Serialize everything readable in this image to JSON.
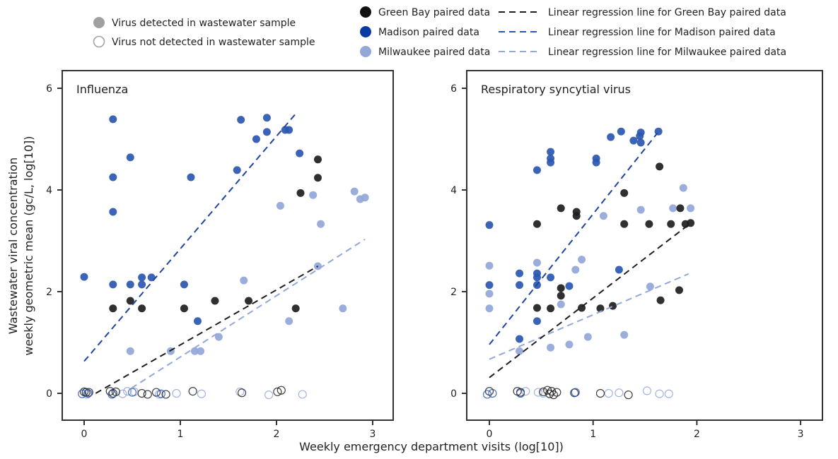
{
  "legend": {
    "detected": "Virus detected in wastewater sample",
    "not_detected": "Virus not detected in wastewater sample",
    "series": [
      "Green Bay paired data",
      "Madison paired data",
      "Milwaukee paired data"
    ],
    "lines": [
      "Linear regression line for Green Bay paired data",
      "Linear regression line for Madison paired data",
      "Linear regression line for Milwaukee paired data"
    ]
  },
  "colors": {
    "Green Bay": "#1e1e1e",
    "Madison": "#2b57b0",
    "Milwaukee": "#93a7d8",
    "detected_marker": "#a0a0a0"
  },
  "xlabel": "Weekly emergency department visits (log[10])",
  "ylabel": [
    "Wastewater viral concentration",
    "weekly geometric mean (gc/L, log[10])"
  ],
  "chart_data": [
    {
      "type": "scatter",
      "title": "Influenza",
      "xlim": [
        -0.1,
        3.3
      ],
      "ylim": [
        -0.5,
        6.3
      ],
      "xticks": [
        0,
        1,
        2,
        3
      ],
      "yticks": [
        0,
        2,
        4,
        6
      ],
      "grid": false,
      "series": [
        {
          "name": "Green Bay paired data",
          "detected": [
            [
              0.3,
              1.67
            ],
            [
              0.48,
              1.82
            ],
            [
              0.6,
              1.67
            ],
            [
              1.04,
              1.67
            ],
            [
              1.36,
              1.82
            ],
            [
              1.71,
              1.82
            ],
            [
              2.2,
              1.67
            ],
            [
              2.25,
              3.94
            ],
            [
              2.43,
              4.24
            ],
            [
              2.43,
              4.6
            ]
          ],
          "not_detected": [
            [
              0,
              0.03
            ],
            [
              0.02,
              0.02
            ],
            [
              0.05,
              0.02
            ],
            [
              0.27,
              0.04
            ],
            [
              0.3,
              0.0
            ],
            [
              0.33,
              0.03
            ],
            [
              0.6,
              0.0
            ],
            [
              0.66,
              -0.02
            ],
            [
              0.75,
              0.02
            ],
            [
              0.85,
              -0.02
            ],
            [
              1.13,
              0.04
            ],
            [
              1.64,
              0.01
            ],
            [
              2.01,
              0.03
            ],
            [
              2.05,
              0.06
            ]
          ],
          "regression": [
            [
              0.12,
              0
            ],
            [
              2.43,
              2.5
            ]
          ]
        },
        {
          "name": "Madison paired data",
          "detected": [
            [
              0,
              2.29
            ],
            [
              0.3,
              5.39
            ],
            [
              0.3,
              4.25
            ],
            [
              0.3,
              3.57
            ],
            [
              0.3,
              2.14
            ],
            [
              0.48,
              4.64
            ],
            [
              0.48,
              2.14
            ],
            [
              0.6,
              2.28
            ],
            [
              0.6,
              2.14
            ],
            [
              0.7,
              2.28
            ],
            [
              1.04,
              2.14
            ],
            [
              1.11,
              4.25
            ],
            [
              1.18,
              1.42
            ],
            [
              1.59,
              4.39
            ],
            [
              1.63,
              5.38
            ],
            [
              1.79,
              5.0
            ],
            [
              1.9,
              5.42
            ],
            [
              1.9,
              5.14
            ],
            [
              2.09,
              5.18
            ],
            [
              2.13,
              5.18
            ],
            [
              2.24,
              4.72
            ]
          ],
          "not_detected": [
            [
              -0.02,
              -0.01
            ],
            [
              0.04,
              0.0
            ],
            [
              0.29,
              -0.02
            ],
            [
              0.5,
              0.02
            ],
            [
              0.8,
              -0.01
            ]
          ],
          "regression": [
            [
              0,
              0.63
            ],
            [
              2.2,
              5.5
            ]
          ]
        },
        {
          "name": "Milwaukee paired data",
          "detected": [
            [
              0.48,
              0.83
            ],
            [
              0.9,
              0.83
            ],
            [
              1.15,
              0.83
            ],
            [
              1.21,
              0.83
            ],
            [
              1.4,
              1.11
            ],
            [
              1.66,
              2.22
            ],
            [
              2.13,
              1.42
            ],
            [
              2.04,
              3.69
            ],
            [
              2.38,
              3.9
            ],
            [
              2.46,
              3.33
            ],
            [
              2.43,
              2.5
            ],
            [
              2.69,
              1.67
            ],
            [
              2.81,
              3.97
            ],
            [
              2.87,
              3.82
            ],
            [
              2.92,
              3.85
            ]
          ],
          "not_detected": [
            [
              0.03,
              -0.02
            ],
            [
              0.4,
              -0.01
            ],
            [
              0.45,
              0.04
            ],
            [
              0.52,
              0.03
            ],
            [
              0.78,
              -0.02
            ],
            [
              0.96,
              0.0
            ],
            [
              1.22,
              -0.01
            ],
            [
              1.62,
              0.03
            ],
            [
              1.92,
              -0.03
            ],
            [
              2.27,
              -0.02
            ]
          ],
          "regression": [
            [
              0.49,
              0.1
            ],
            [
              2.92,
              3.03
            ]
          ]
        }
      ]
    },
    {
      "type": "scatter",
      "title": "Respiratory syncytial virus",
      "xlim": [
        -0.1,
        3.3
      ],
      "ylim": [
        -0.5,
        6.3
      ],
      "xticks": [
        0,
        1,
        2,
        3
      ],
      "yticks": [
        0,
        2,
        4,
        6
      ],
      "grid": false,
      "series": [
        {
          "name": "Green Bay paired data",
          "detected": [
            [
              0.46,
              3.33
            ],
            [
              0.69,
              3.64
            ],
            [
              0.84,
              3.57
            ],
            [
              0.84,
              3.49
            ],
            [
              1.64,
              4.46
            ],
            [
              1.3,
              3.94
            ],
            [
              1.3,
              3.33
            ],
            [
              1.54,
              3.33
            ],
            [
              1.75,
              3.33
            ],
            [
              1.84,
              3.64
            ],
            [
              1.89,
              3.33
            ],
            [
              1.94,
              3.35
            ],
            [
              1.83,
              2.03
            ],
            [
              1.65,
              1.83
            ],
            [
              1.19,
              1.72
            ],
            [
              1.07,
              1.67
            ],
            [
              0.89,
              1.68
            ],
            [
              0.69,
              2.07
            ],
            [
              0.69,
              1.92
            ],
            [
              0.59,
              1.67
            ],
            [
              0.46,
              1.68
            ]
          ],
          "not_detected": [
            [
              0,
              0.04
            ],
            [
              0.27,
              0.04
            ],
            [
              0.3,
              0.02
            ],
            [
              0.52,
              0.03
            ],
            [
              0.56,
              0.06
            ],
            [
              0.58,
              -0.01
            ],
            [
              0.6,
              0.04
            ],
            [
              0.62,
              -0.03
            ],
            [
              0.65,
              0.02
            ],
            [
              0.82,
              0.01
            ],
            [
              1.07,
              0.0
            ],
            [
              1.34,
              -0.03
            ]
          ],
          "regression": [
            [
              0,
              0.31
            ],
            [
              1.93,
              3.33
            ]
          ]
        },
        {
          "name": "Madison paired data",
          "detected": [
            [
              0,
              3.31
            ],
            [
              0,
              2.13
            ],
            [
              0.29,
              2.36
            ],
            [
              0.29,
              2.13
            ],
            [
              0.46,
              4.39
            ],
            [
              0.46,
              2.36
            ],
            [
              0.46,
              2.28
            ],
            [
              0.46,
              2.13
            ],
            [
              0.59,
              2.28
            ],
            [
              0.59,
              4.75
            ],
            [
              0.59,
              4.62
            ],
            [
              0.59,
              4.54
            ],
            [
              0.46,
              1.42
            ],
            [
              0.29,
              1.07
            ],
            [
              0.77,
              2.11
            ],
            [
              1.03,
              4.62
            ],
            [
              1.03,
              4.54
            ],
            [
              1.25,
              2.43
            ],
            [
              1.17,
              5.04
            ],
            [
              1.27,
              5.15
            ],
            [
              1.39,
              4.97
            ],
            [
              1.45,
              5.06
            ],
            [
              1.46,
              5.13
            ],
            [
              1.46,
              4.93
            ],
            [
              1.63,
              5.15
            ]
          ],
          "not_detected": [
            [
              -0.02,
              -0.02
            ],
            [
              0.03,
              0.0
            ],
            [
              0.3,
              0.0
            ],
            [
              0.83,
              0.02
            ]
          ],
          "regression": [
            [
              0,
              0.96
            ],
            [
              1.62,
              5.12
            ]
          ]
        },
        {
          "name": "Milwaukee paired data",
          "detected": [
            [
              0,
              2.51
            ],
            [
              0,
              1.96
            ],
            [
              0,
              1.67
            ],
            [
              0.29,
              0.83
            ],
            [
              0.46,
              2.57
            ],
            [
              0.59,
              0.9
            ],
            [
              0.69,
              1.75
            ],
            [
              0.77,
              0.96
            ],
            [
              0.83,
              2.43
            ],
            [
              0.89,
              2.63
            ],
            [
              0.95,
              1.11
            ],
            [
              1.1,
              3.49
            ],
            [
              1.3,
              1.15
            ],
            [
              1.46,
              3.61
            ],
            [
              1.55,
              2.1
            ],
            [
              1.77,
              3.64
            ],
            [
              1.87,
              4.04
            ],
            [
              1.94,
              3.64
            ]
          ],
          "not_detected": [
            [
              0.35,
              0.04
            ],
            [
              0.47,
              0.02
            ],
            [
              0.52,
              0.0
            ],
            [
              1.15,
              0.0
            ],
            [
              1.25,
              0.01
            ],
            [
              1.52,
              0.05
            ],
            [
              1.64,
              -0.01
            ],
            [
              1.73,
              -0.01
            ]
          ],
          "regression": [
            [
              0,
              0.67
            ],
            [
              1.92,
              2.35
            ]
          ]
        }
      ]
    }
  ]
}
